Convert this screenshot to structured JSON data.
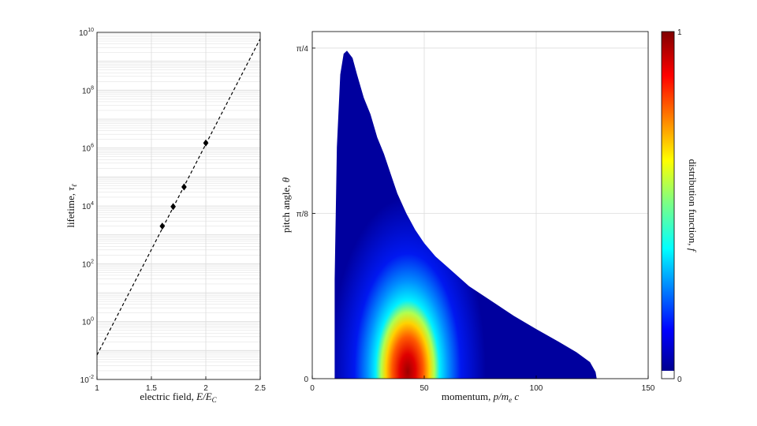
{
  "chart_data": [
    {
      "type": "scatter",
      "xlabel_text": "electric field, ",
      "xlabel_math": "E/E",
      "xlabel_sub": "C",
      "ylabel_text": "lifetime, ",
      "ylabel_math": "τ",
      "ylabel_sub": "ℓ",
      "x_ticks": [
        "1",
        "1.5",
        "2",
        "2.5"
      ],
      "xlim": [
        1,
        2.5
      ],
      "ylim": [
        0.01,
        10000000000
      ],
      "yscale": "log",
      "y_ticks": [
        {
          "base": "10",
          "exp": "-2"
        },
        {
          "base": "10",
          "exp": "0"
        },
        {
          "base": "10",
          "exp": "2"
        },
        {
          "base": "10",
          "exp": "4"
        },
        {
          "base": "10",
          "exp": "6"
        },
        {
          "base": "10",
          "exp": "8"
        },
        {
          "base": "10",
          "exp": "10"
        }
      ],
      "grid": true,
      "points": [
        {
          "x": 1.6,
          "y": 2000
        },
        {
          "x": 1.7,
          "y": 9500
        },
        {
          "x": 1.8,
          "y": 45000
        },
        {
          "x": 2.0,
          "y": 1500000
        }
      ],
      "fit_line": {
        "style": "dashed",
        "x": [
          1,
          2.5
        ],
        "y": [
          0.07,
          6000000000
        ]
      }
    },
    {
      "type": "heatmap",
      "xlabel_text": "momentum, ",
      "xlabel_math": "p/m",
      "xlabel_sub": "e",
      "xlabel_tail": " c",
      "ylabel_text": "pitch angle, ",
      "ylabel_math": "θ",
      "x_ticks": [
        "0",
        "50",
        "100",
        "150"
      ],
      "xlim": [
        0,
        150
      ],
      "y_ticks": [
        "0",
        "π/8",
        "π/4"
      ],
      "ylim": [
        0,
        1.05
      ],
      "grid": true,
      "colormap": "jet",
      "peak": {
        "x": 43,
        "y": 0
      },
      "boundary": [
        [
          10,
          0
        ],
        [
          10,
          0.3
        ],
        [
          11,
          0.7
        ],
        [
          12.5,
          0.92
        ],
        [
          14,
          0.983
        ],
        [
          15.5,
          0.992
        ],
        [
          18,
          0.97
        ],
        [
          20,
          0.92
        ],
        [
          23,
          0.85
        ],
        [
          26,
          0.8
        ],
        [
          29,
          0.73
        ],
        [
          32,
          0.68
        ],
        [
          35,
          0.62
        ],
        [
          38,
          0.56
        ],
        [
          42,
          0.5
        ],
        [
          46,
          0.45
        ],
        [
          50,
          0.41
        ],
        [
          55,
          0.37
        ],
        [
          60,
          0.34
        ],
        [
          65,
          0.31
        ],
        [
          70,
          0.28
        ],
        [
          80,
          0.235
        ],
        [
          90,
          0.19
        ],
        [
          100,
          0.15
        ],
        [
          110,
          0.112
        ],
        [
          118,
          0.08
        ],
        [
          124,
          0.05
        ],
        [
          126.5,
          0.02
        ],
        [
          127,
          0
        ]
      ],
      "colorbar": {
        "label_text": "distribution function, ",
        "label_math": "f",
        "min_label": "0",
        "max_label": "1",
        "range": [
          0,
          1
        ]
      }
    }
  ],
  "colors": {
    "axes": "#000000",
    "grid": "#dcdcdc",
    "marker": "#000000"
  }
}
